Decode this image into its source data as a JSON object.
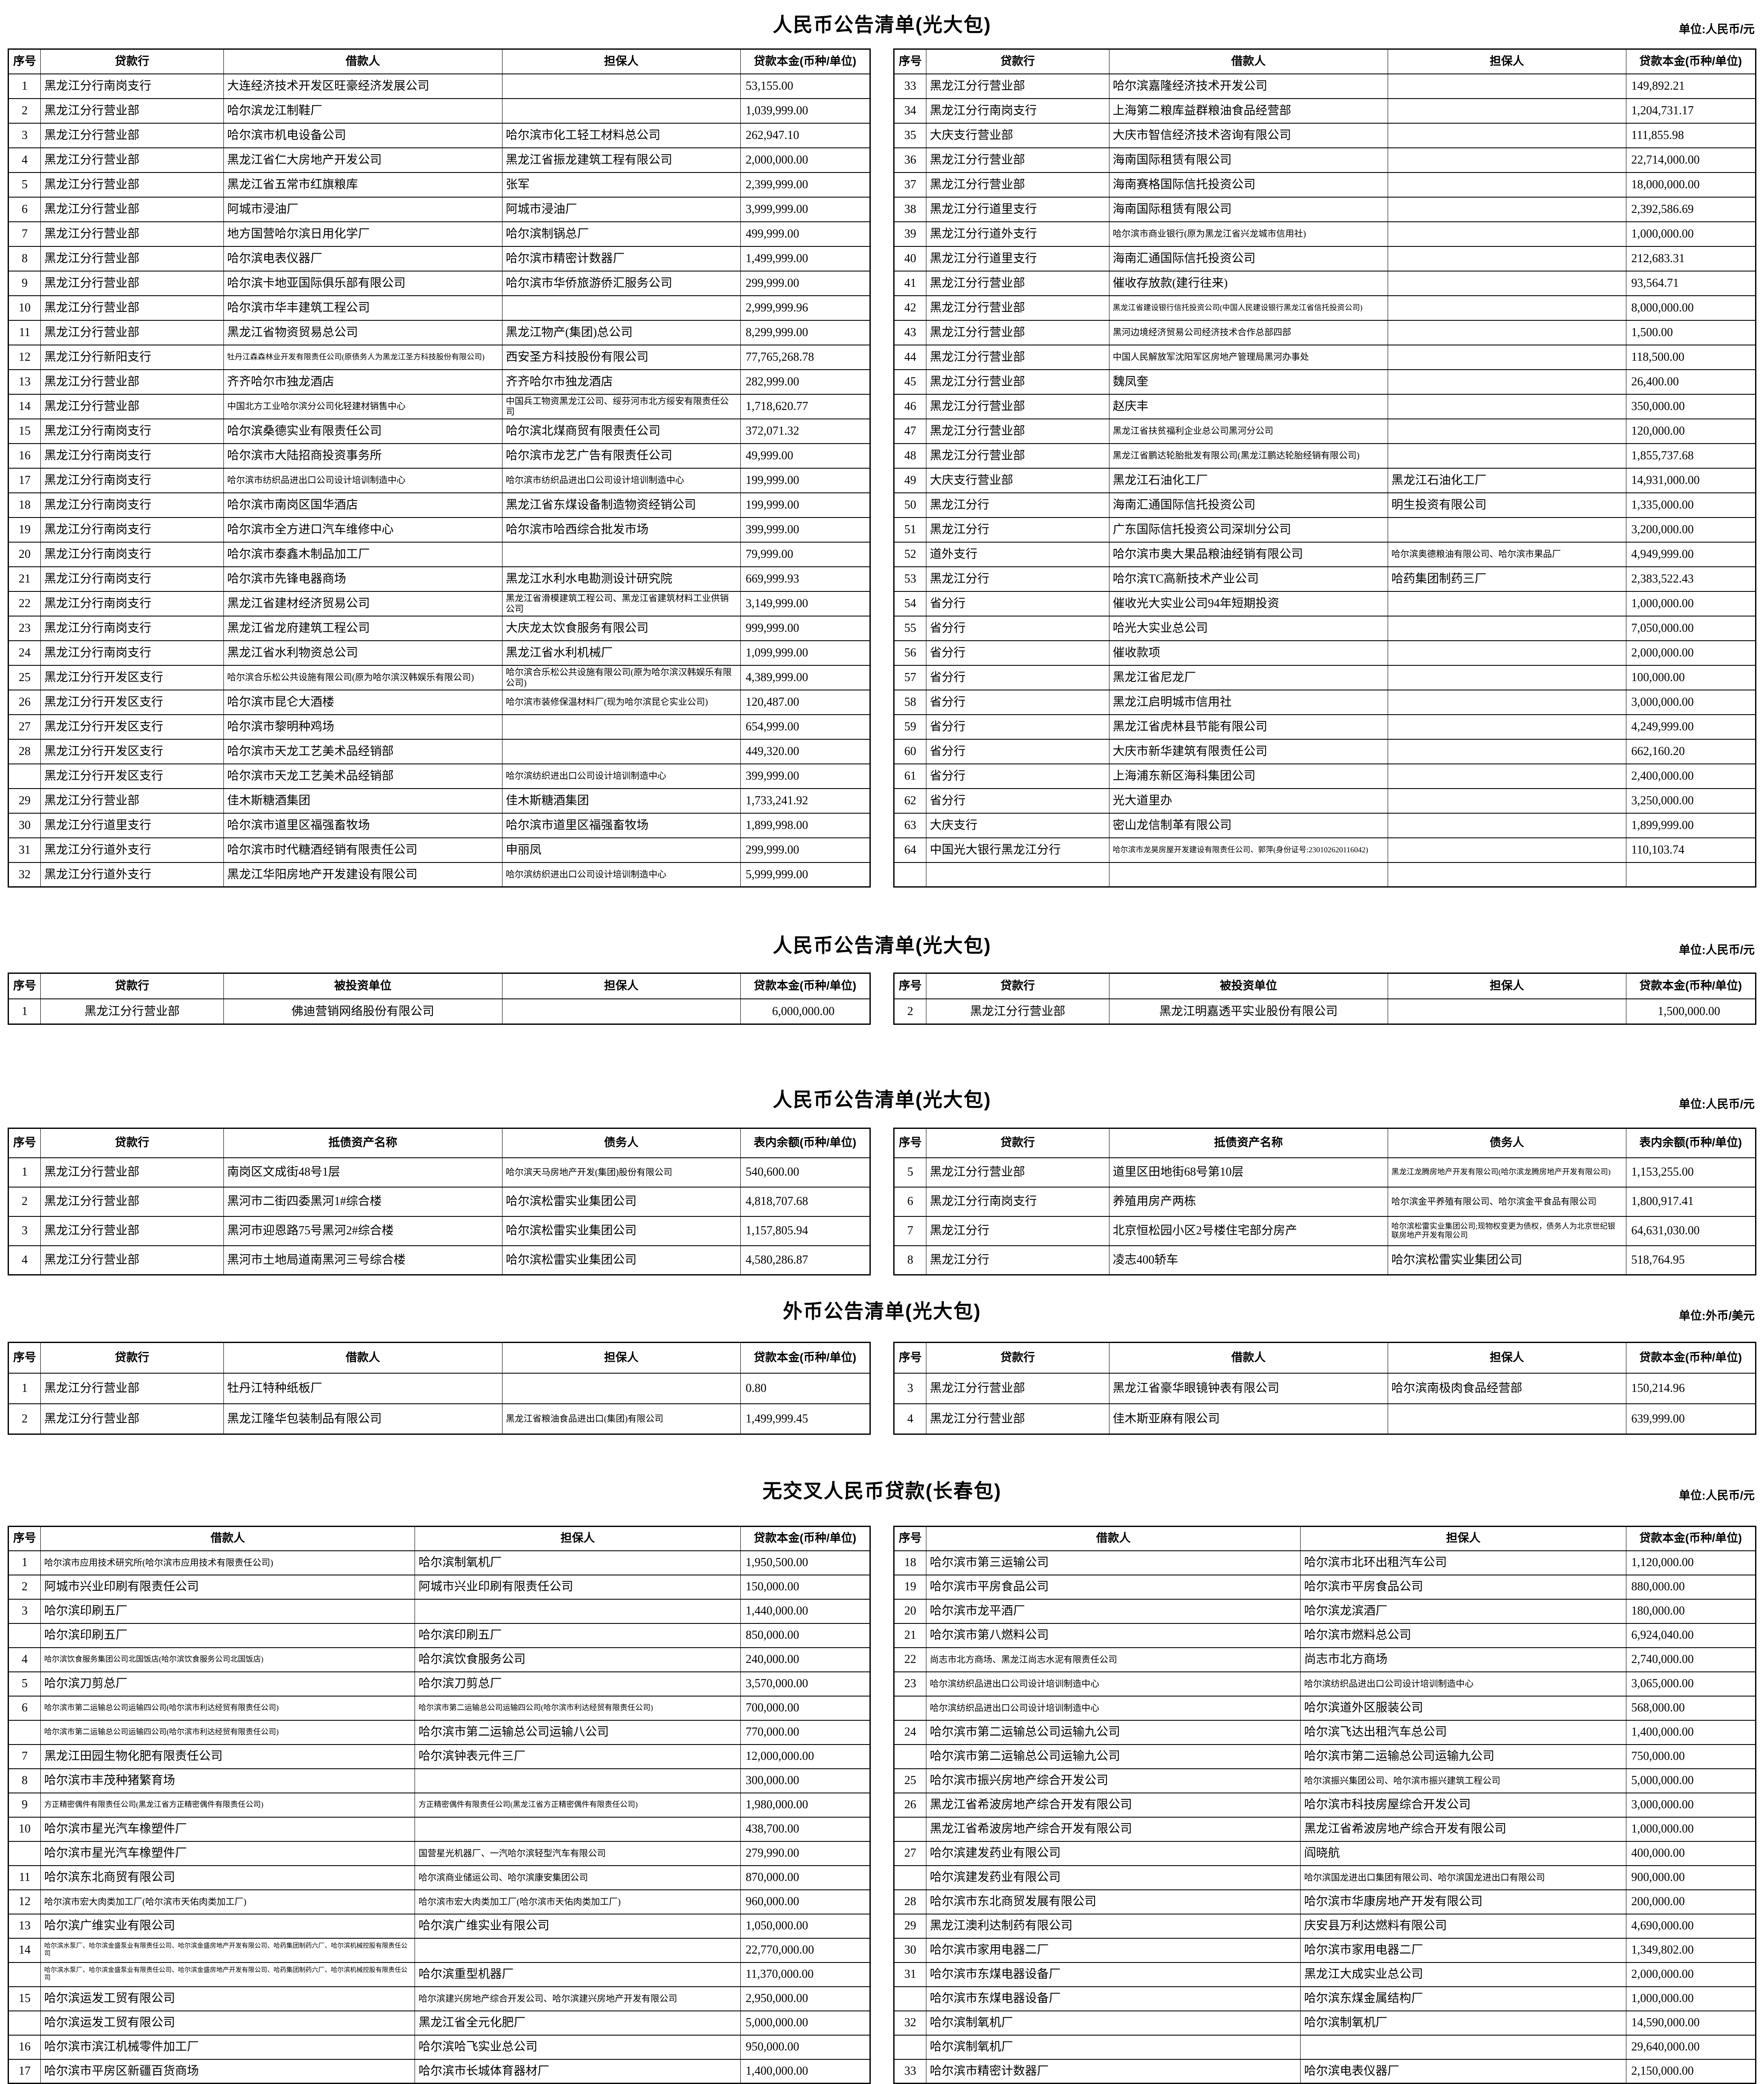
{
  "sections": [
    {
      "title": "人民币公告清单(光大包)",
      "unit": "单位:人民币/元",
      "headers": [
        "序号",
        "贷款行",
        "借款人",
        "担保人",
        "贷款本金(币种/单位)"
      ],
      "left_rows": [
        [
          "1",
          "黑龙江分行南岗支行",
          "大连经济技术开发区旺豪经济发展公司",
          "",
          "53,155.00"
        ],
        [
          "2",
          "黑龙江分行营业部",
          "哈尔滨龙江制鞋厂",
          "",
          "1,039,999.00"
        ],
        [
          "3",
          "黑龙江分行营业部",
          "哈尔滨市机电设备公司",
          "哈尔滨市化工轻工材料总公司",
          "262,947.10"
        ],
        [
          "4",
          "黑龙江分行营业部",
          "黑龙江省仁大房地产开发公司",
          "黑龙江省振龙建筑工程有限公司",
          "2,000,000.00"
        ],
        [
          "5",
          "黑龙江分行营业部",
          "黑龙江省五常市红旗粮库",
          "张军",
          "2,399,999.00"
        ],
        [
          "6",
          "黑龙江分行营业部",
          "阿城市浸油厂",
          "阿城市浸油厂",
          "3,999,999.00"
        ],
        [
          "7",
          "黑龙江分行营业部",
          "地方国营哈尔滨日用化学厂",
          "哈尔滨制锅总厂",
          "499,999.00"
        ],
        [
          "8",
          "黑龙江分行营业部",
          "哈尔滨电表仪器厂",
          "哈尔滨市精密计数器厂",
          "1,499,999.00"
        ],
        [
          "9",
          "黑龙江分行营业部",
          "哈尔滨卡地亚国际俱乐部有限公司",
          "哈尔滨市华侨旅游侨汇服务公司",
          "299,999.00"
        ],
        [
          "10",
          "黑龙江分行营业部",
          "哈尔滨市华丰建筑工程公司",
          "",
          "2,999,999.96"
        ],
        [
          "11",
          "黑龙江分行营业部",
          "黑龙江省物资贸易总公司",
          "黑龙江物产(集团)总公司",
          "8,299,999.00"
        ],
        [
          "12",
          "黑龙江分行新阳支行",
          "牡丹江森森林业开发有限责任公司(原债务人为黑龙江圣方科技股份有限公司)",
          "西安圣方科技股份有限公司",
          "77,765,268.78"
        ],
        [
          "13",
          "黑龙江分行营业部",
          "齐齐哈尔市独龙酒店",
          "齐齐哈尔市独龙酒店",
          "282,999.00"
        ],
        [
          "14",
          "黑龙江分行营业部",
          "中国北方工业哈尔滨分公司化轻建材销售中心",
          "中国兵工物资黑龙江公司、绥芬河市北方绥安有限责任公司",
          "1,718,620.77"
        ],
        [
          "15",
          "黑龙江分行南岗支行",
          "哈尔滨桑德实业有限责任公司",
          "哈尔滨北煤商贸有限责任公司",
          "372,071.32"
        ],
        [
          "16",
          "黑龙江分行南岗支行",
          "哈尔滨市大陆招商投资事务所",
          "哈尔滨市龙艺广告有限责任公司",
          "49,999.00"
        ],
        [
          "17",
          "黑龙江分行南岗支行",
          "哈尔滨市纺织品进出口公司设计培训制造中心",
          "哈尔滨市纺织品进出口公司设计培训制造中心",
          "199,999.00"
        ],
        [
          "18",
          "黑龙江分行南岗支行",
          "哈尔滨市南岗区国华酒店",
          "黑龙江省东煤设备制造物资经销公司",
          "199,999.00"
        ],
        [
          "19",
          "黑龙江分行南岗支行",
          "哈尔滨市全方进口汽车维修中心",
          "哈尔滨市哈西综合批发市场",
          "399,999.00"
        ],
        [
          "20",
          "黑龙江分行南岗支行",
          "哈尔滨市泰鑫木制品加工厂",
          "",
          "79,999.00"
        ],
        [
          "21",
          "黑龙江分行南岗支行",
          "哈尔滨市先锋电器商场",
          "黑龙江水利水电勘测设计研究院",
          "669,999.93"
        ],
        [
          "22",
          "黑龙江分行南岗支行",
          "黑龙江省建材经济贸易公司",
          "黑龙江省滑模建筑工程公司、黑龙江省建筑材料工业供销公司",
          "3,149,999.00"
        ],
        [
          "23",
          "黑龙江分行南岗支行",
          "黑龙江省龙府建筑工程公司",
          "大庆龙太饮食服务有限公司",
          "999,999.00"
        ],
        [
          "24",
          "黑龙江分行南岗支行",
          "黑龙江省水利物资总公司",
          "黑龙江省水利机械厂",
          "1,099,999.00"
        ],
        [
          "25",
          "黑龙江分行开发区支行",
          "哈尔滨合乐松公共设施有限公司(原为哈尔滨汉韩娱乐有限公司)",
          "哈尔滨合乐松公共设施有限公司(原为哈尔滨汉韩娱乐有限公司)",
          "4,389,999.00"
        ],
        [
          "26",
          "黑龙江分行开发区支行",
          "哈尔滨市昆仑大酒楼",
          "哈尔滨市装修保温材料厂(现为哈尔滨昆仑实业公司)",
          "120,487.00"
        ],
        [
          "27",
          "黑龙江分行开发区支行",
          "哈尔滨市黎明种鸡场",
          "",
          "654,999.00"
        ],
        [
          "28",
          "黑龙江分行开发区支行",
          "哈尔滨市天龙工艺美术品经销部",
          "",
          "449,320.00"
        ],
        [
          "",
          "黑龙江分行开发区支行",
          "哈尔滨市天龙工艺美术品经销部",
          "哈尔滨纺织进出口公司设计培训制造中心",
          "399,999.00"
        ],
        [
          "29",
          "黑龙江分行营业部",
          "佳木斯糖酒集团",
          "佳木斯糖酒集团",
          "1,733,241.92"
        ],
        [
          "30",
          "黑龙江分行道里支行",
          "哈尔滨市道里区福强畜牧场",
          "哈尔滨市道里区福强畜牧场",
          "1,899,998.00"
        ],
        [
          "31",
          "黑龙江分行道外支行",
          "哈尔滨市时代糖酒经销有限责任公司",
          "申丽凤",
          "299,999.00"
        ],
        [
          "32",
          "黑龙江分行道外支行",
          "黑龙江华阳房地产开发建设有限公司",
          "哈尔滨纺织进出口公司设计培训制造中心",
          "5,999,999.00"
        ]
      ],
      "right_rows": [
        [
          "33",
          "黑龙江分行营业部",
          "哈尔滨嘉隆经济技术开发公司",
          "",
          "149,892.21"
        ],
        [
          "34",
          "黑龙江分行南岗支行",
          "上海第二粮库益群粮油食品经营部",
          "",
          "1,204,731.17"
        ],
        [
          "35",
          "大庆支行营业部",
          "大庆市智信经济技术咨询有限公司",
          "",
          "111,855.98"
        ],
        [
          "36",
          "黑龙江分行营业部",
          "海南国际租赁有限公司",
          "",
          "22,714,000.00"
        ],
        [
          "37",
          "黑龙江分行营业部",
          "海南赛格国际信托投资公司",
          "",
          "18,000,000.00"
        ],
        [
          "38",
          "黑龙江分行道里支行",
          "海南国际租赁有限公司",
          "",
          "2,392,586.69"
        ],
        [
          "39",
          "黑龙江分行道外支行",
          "哈尔滨市商业银行(原为黑龙江省兴龙城市信用社)",
          "",
          "1,000,000.00"
        ],
        [
          "40",
          "黑龙江分行道里支行",
          "海南汇通国际信托投资公司",
          "",
          "212,683.31"
        ],
        [
          "41",
          "黑龙江分行营业部",
          "催收存放款(建行往来)",
          "",
          "93,564.71"
        ],
        [
          "42",
          "黑龙江分行营业部",
          "黑龙江省建设银行信托投资公司(中国人民建设银行黑龙江省信托投资公司)",
          "",
          "8,000,000.00"
        ],
        [
          "43",
          "黑龙江分行营业部",
          "黑河边境经济贸易公司经济技术合作总部四部",
          "",
          "1,500.00"
        ],
        [
          "44",
          "黑龙江分行营业部",
          "中国人民解放军沈阳军区房地产管理局黑河办事处",
          "",
          "118,500.00"
        ],
        [
          "45",
          "黑龙江分行营业部",
          "魏凤奎",
          "",
          "26,400.00"
        ],
        [
          "46",
          "黑龙江分行营业部",
          "赵庆丰",
          "",
          "350,000.00"
        ],
        [
          "47",
          "黑龙江分行营业部",
          "黑龙江省扶贫福利企业总公司黑河分公司",
          "",
          "120,000.00"
        ],
        [
          "48",
          "黑龙江分行营业部",
          "黑龙江省鹏达轮胎批发有限公司(黑龙江鹏达轮胎经销有限公司)",
          "",
          "1,855,737.68"
        ],
        [
          "49",
          "大庆支行营业部",
          "黑龙江石油化工厂",
          "黑龙江石油化工厂",
          "14,931,000.00"
        ],
        [
          "50",
          "黑龙江分行",
          "海南汇通国际信托投资公司",
          "明生投资有限公司",
          "1,335,000.00"
        ],
        [
          "51",
          "黑龙江分行",
          "广东国际信托投资公司深圳分公司",
          "",
          "3,200,000.00"
        ],
        [
          "52",
          "道外支行",
          "哈尔滨市奥大果品粮油经销有限公司",
          "哈尔滨奥德粮油有限公司、哈尔滨市果品厂",
          "4,949,999.00"
        ],
        [
          "53",
          "黑龙江分行",
          "哈尔滨TC高新技术产业公司",
          "哈药集团制药三厂",
          "2,383,522.43"
        ],
        [
          "54",
          "省分行",
          "催收光大实业公司94年短期投资",
          "",
          "1,000,000.00"
        ],
        [
          "55",
          "省分行",
          "哈光大实业总公司",
          "",
          "7,050,000.00"
        ],
        [
          "56",
          "省分行",
          "催收款项",
          "",
          "2,000,000.00"
        ],
        [
          "57",
          "省分行",
          "黑龙江省尼龙厂",
          "",
          "100,000.00"
        ],
        [
          "58",
          "省分行",
          "黑龙江启明城市信用社",
          "",
          "3,000,000.00"
        ],
        [
          "59",
          "省分行",
          "黑龙江省虎林县节能有限公司",
          "",
          "4,249,999.00"
        ],
        [
          "60",
          "省分行",
          "大庆市新华建筑有限责任公司",
          "",
          "662,160.20"
        ],
        [
          "61",
          "省分行",
          "上海浦东新区海科集团公司",
          "",
          "2,400,000.00"
        ],
        [
          "62",
          "省分行",
          "光大道里办",
          "",
          "3,250,000.00"
        ],
        [
          "63",
          "大庆支行",
          "密山龙信制革有限公司",
          "",
          "1,899,999.00"
        ],
        [
          "64",
          "中国光大银行黑龙江分行",
          "哈尔滨市龙昊房屋开发建设有限责任公司、郭萍(身份证号:230102620116042)",
          "",
          "110,103.74"
        ],
        [
          "",
          "",
          "",
          "",
          ""
        ]
      ]
    },
    {
      "title": "人民币公告清单(光大包)",
      "unit": "单位:人民币/元",
      "headers": [
        "序号",
        "贷款行",
        "被投资单位",
        "担保人",
        "贷款本金(币种/单位)"
      ],
      "left_rows": [
        [
          "1",
          "黑龙江分行营业部",
          "佛迪营销网络股份有限公司",
          "",
          "6,000,000.00"
        ]
      ],
      "right_rows": [
        [
          "2",
          "黑龙江分行营业部",
          "黑龙江明嘉透平实业股份有限公司",
          "",
          "1,500,000.00"
        ]
      ]
    },
    {
      "title": "人民币公告清单(光大包)",
      "unit": "单位:人民币/元",
      "headers": [
        "序号",
        "贷款行",
        "抵债资产名称",
        "债务人",
        "表内余额(币种/单位)"
      ],
      "left_rows": [
        [
          "1",
          "黑龙江分行营业部",
          "南岗区文成街48号1层",
          "哈尔滨天马房地产开发(集团)股份有限公司",
          "540,600.00"
        ],
        [
          "2",
          "黑龙江分行营业部",
          "黑河市二街四委黑河1#综合楼",
          "哈尔滨松雷实业集团公司",
          "4,818,707.68"
        ],
        [
          "3",
          "黑龙江分行营业部",
          "黑河市迎恩路75号黑河2#综合楼",
          "哈尔滨松雷实业集团公司",
          "1,157,805.94"
        ],
        [
          "4",
          "黑龙江分行营业部",
          "黑河市土地局道南黑河三号综合楼",
          "哈尔滨松雷实业集团公司",
          "4,580,286.87"
        ]
      ],
      "right_rows": [
        [
          "5",
          "黑龙江分行营业部",
          "道里区田地街68号第10层",
          "黑龙江龙腾房地产开发有限公司(哈尔滨龙腾房地产开发有限公司)",
          "1,153,255.00"
        ],
        [
          "6",
          "黑龙江分行南岗支行",
          "养殖用房产两栋",
          "哈尔滨金平养殖有限公司、哈尔滨金平食品有限公司",
          "1,800,917.41"
        ],
        [
          "7",
          "黑龙江分行",
          "北京恒松园小区2号楼住宅部分房产",
          "哈尔滨松雷实业集团公司;现物权变更为债权，债务人为北京世纪银联房地产开发有限公司",
          "64,631,030.00"
        ],
        [
          "8",
          "黑龙江分行",
          "凌志400轿车",
          "哈尔滨松雷实业集团公司",
          "518,764.95"
        ]
      ]
    },
    {
      "title": "外币公告清单(光大包)",
      "unit": "单位:外币/美元",
      "headers": [
        "序号",
        "贷款行",
        "借款人",
        "担保人",
        "贷款本金(币种/单位)"
      ],
      "left_rows": [
        [
          "1",
          "黑龙江分行营业部",
          "牡丹江特种纸板厂",
          "",
          "0.80"
        ],
        [
          "2",
          "黑龙江分行营业部",
          "黑龙江隆华包装制品有限公司",
          "黑龙江省粮油食品进出口(集团)有限公司",
          "1,499,999.45"
        ]
      ],
      "right_rows": [
        [
          "3",
          "黑龙江分行营业部",
          "黑龙江省豪华眼镜钟表有限公司",
          "哈尔滨南极肉食品经营部",
          "150,214.96"
        ],
        [
          "4",
          "黑龙江分行营业部",
          "佳木斯亚麻有限公司",
          "",
          "639,999.00"
        ]
      ]
    },
    {
      "title": "无交叉人民币贷款(长春包)",
      "unit": "单位:人民币/元",
      "headers": [
        "序号",
        "借款人",
        "担保人",
        "贷款本金(币种/单位)"
      ],
      "left_rows": [
        [
          "1",
          "哈尔滨市应用技术研究所(哈尔滨市应用技术有限责任公司)",
          "哈尔滨制氧机厂",
          "1,950,500.00"
        ],
        [
          "2",
          "阿城市兴业印刷有限责任公司",
          "阿城市兴业印刷有限责任公司",
          "150,000.00"
        ],
        [
          "3",
          "哈尔滨印刷五厂",
          "",
          "1,440,000.00"
        ],
        [
          "",
          "哈尔滨印刷五厂",
          "哈尔滨印刷五厂",
          "850,000.00"
        ],
        [
          "4",
          "哈尔滨饮食服务集团公司北国饭店(哈尔滨饮食服务公司北国饭店)",
          "哈尔滨饮食服务公司",
          "240,000.00"
        ],
        [
          "5",
          "哈尔滨刀剪总厂",
          "哈尔滨刀剪总厂",
          "3,570,000.00"
        ],
        [
          "6",
          "哈尔滨市第二运输总公司运输四公司(哈尔滨市利达经贸有限责任公司)",
          "哈尔滨市第二运输总公司运输四公司(哈尔滨市利达经贸有限责任公司)",
          "700,000.00"
        ],
        [
          "",
          "哈尔滨市第二运输总公司运输四公司(哈尔滨市利达经贸有限责任公司)",
          "哈尔滨市第二运输总公司运输八公司",
          "770,000.00"
        ],
        [
          "7",
          "黑龙江田园生物化肥有限责任公司",
          "哈尔滨钟表元件三厂",
          "12,000,000.00"
        ],
        [
          "8",
          "哈尔滨市丰茂种猪繁育场",
          "",
          "300,000.00"
        ],
        [
          "9",
          "方正精密偶件有限责任公司(黑龙江省方正精密偶件有限责任公司)",
          "方正精密偶件有限责任公司(黑龙江省方正精密偶件有限责任公司)",
          "1,980,000.00"
        ],
        [
          "10",
          "哈尔滨市星光汽车橡塑件厂",
          "",
          "438,700.00"
        ],
        [
          "",
          "哈尔滨市星光汽车橡塑件厂",
          "国营星光机器厂、一汽哈尔滨轻型汽车有限公司",
          "279,990.00"
        ],
        [
          "11",
          "哈尔滨东北商贸有限公司",
          "哈尔滨商业储运公司、哈尔滨康安集团公司",
          "870,000.00"
        ],
        [
          "12",
          "哈尔滨市宏大肉类加工厂(哈尔滨市天佑肉类加工厂)",
          "哈尔滨市宏大肉类加工厂(哈尔滨市天佑肉类加工厂)",
          "960,000.00"
        ],
        [
          "13",
          "哈尔滨广维实业有限公司",
          "哈尔滨广维实业有限公司",
          "1,050,000.00"
        ],
        [
          "14",
          "哈尔滨水泵厂、哈尔滨金盛泵业有限责任公司、哈尔滨金盛房地产开发有限公司、哈药集团制药六厂、哈尔滨机械控股有限责任公司",
          "",
          "22,770,000.00"
        ],
        [
          "",
          "哈尔滨水泵厂、哈尔滨金盛泵业有限责任公司、哈尔滨金盛房地产开发有限公司、哈药集团制药六厂、哈尔滨机械控股有限责任公司",
          "哈尔滨重型机器厂",
          "11,370,000.00"
        ],
        [
          "15",
          "哈尔滨运发工贸有限公司",
          "哈尔滨建兴房地产综合开发公司、哈尔滨建兴房地产开发有限公司",
          "2,950,000.00"
        ],
        [
          "",
          "哈尔滨运发工贸有限公司",
          "黑龙江省全元化肥厂",
          "5,000,000.00"
        ],
        [
          "16",
          "哈尔滨市滨江机械零件加工厂",
          "哈尔滨哈飞实业总公司",
          "950,000.00"
        ],
        [
          "17",
          "哈尔滨市平房区新疆百货商场",
          "哈尔滨市长城体育器材厂",
          "1,400,000.00"
        ]
      ],
      "right_rows": [
        [
          "18",
          "哈尔滨市第三运输公司",
          "哈尔滨市北环出租汽车公司",
          "1,120,000.00"
        ],
        [
          "19",
          "哈尔滨市平房食品公司",
          "哈尔滨市平房食品公司",
          "880,000.00"
        ],
        [
          "20",
          "哈尔滨市龙平酒厂",
          "哈尔滨龙滨酒厂",
          "180,000.00"
        ],
        [
          "21",
          "哈尔滨市第八燃料公司",
          "哈尔滨市燃料总公司",
          "6,924,040.00"
        ],
        [
          "22",
          "尚志市北方商场、黑龙江尚志水泥有限责任公司",
          "尚志市北方商场",
          "2,740,000.00"
        ],
        [
          "23",
          "哈尔滨纺织品进出口公司设计培训制造中心",
          "哈尔滨纺织品进出口公司设计培训制造中心",
          "3,065,000.00"
        ],
        [
          "",
          "哈尔滨纺织品进出口公司设计培训制造中心",
          "哈尔滨道外区服装公司",
          "568,000.00"
        ],
        [
          "24",
          "哈尔滨市第二运输总公司运输九公司",
          "哈尔滨飞达出租汽车总公司",
          "1,400,000.00"
        ],
        [
          "",
          "哈尔滨市第二运输总公司运输九公司",
          "哈尔滨市第二运输总公司运输九公司",
          "750,000.00"
        ],
        [
          "25",
          "哈尔滨市振兴房地产综合开发公司",
          "哈尔滨振兴集团公司、哈尔滨市振兴建筑工程公司",
          "5,000,000.00"
        ],
        [
          "26",
          "黑龙江省希波房地产综合开发有限公司",
          "哈尔滨市科技房屋综合开发公司",
          "3,000,000.00"
        ],
        [
          "",
          "黑龙江省希波房地产综合开发有限公司",
          "黑龙江省希波房地产综合开发有限公司",
          "1,000,000.00"
        ],
        [
          "27",
          "哈尔滨建发药业有限公司",
          "阎晓航",
          "400,000.00"
        ],
        [
          "",
          "哈尔滨建发药业有限公司",
          "哈尔滨国龙进出口集团有限公司、哈尔滨国龙进出口有限公司",
          "900,000.00"
        ],
        [
          "28",
          "哈尔滨市东北商贸发展有限公司",
          "哈尔滨市华康房地产开发有限公司",
          "200,000.00"
        ],
        [
          "29",
          "黑龙江澳利达制药有限公司",
          "庆安县万利达燃料有限公司",
          "4,690,000.00"
        ],
        [
          "30",
          "哈尔滨市家用电器二厂",
          "哈尔滨市家用电器二厂",
          "1,349,802.00"
        ],
        [
          "31",
          "哈尔滨市东煤电器设备厂",
          "黑龙江大成实业总公司",
          "2,000,000.00"
        ],
        [
          "",
          "哈尔滨市东煤电器设备厂",
          "哈尔滨东煤金属结构厂",
          "1,000,000.00"
        ],
        [
          "32",
          "哈尔滨制氧机厂",
          "哈尔滨制氧机厂",
          "14,590,000.00"
        ],
        [
          "",
          "哈尔滨制氧机厂",
          "",
          "29,640,000.00"
        ],
        [
          "33",
          "哈尔滨市精密计数器厂",
          "哈尔滨电表仪器厂",
          "2,150,000.00"
        ]
      ]
    }
  ]
}
